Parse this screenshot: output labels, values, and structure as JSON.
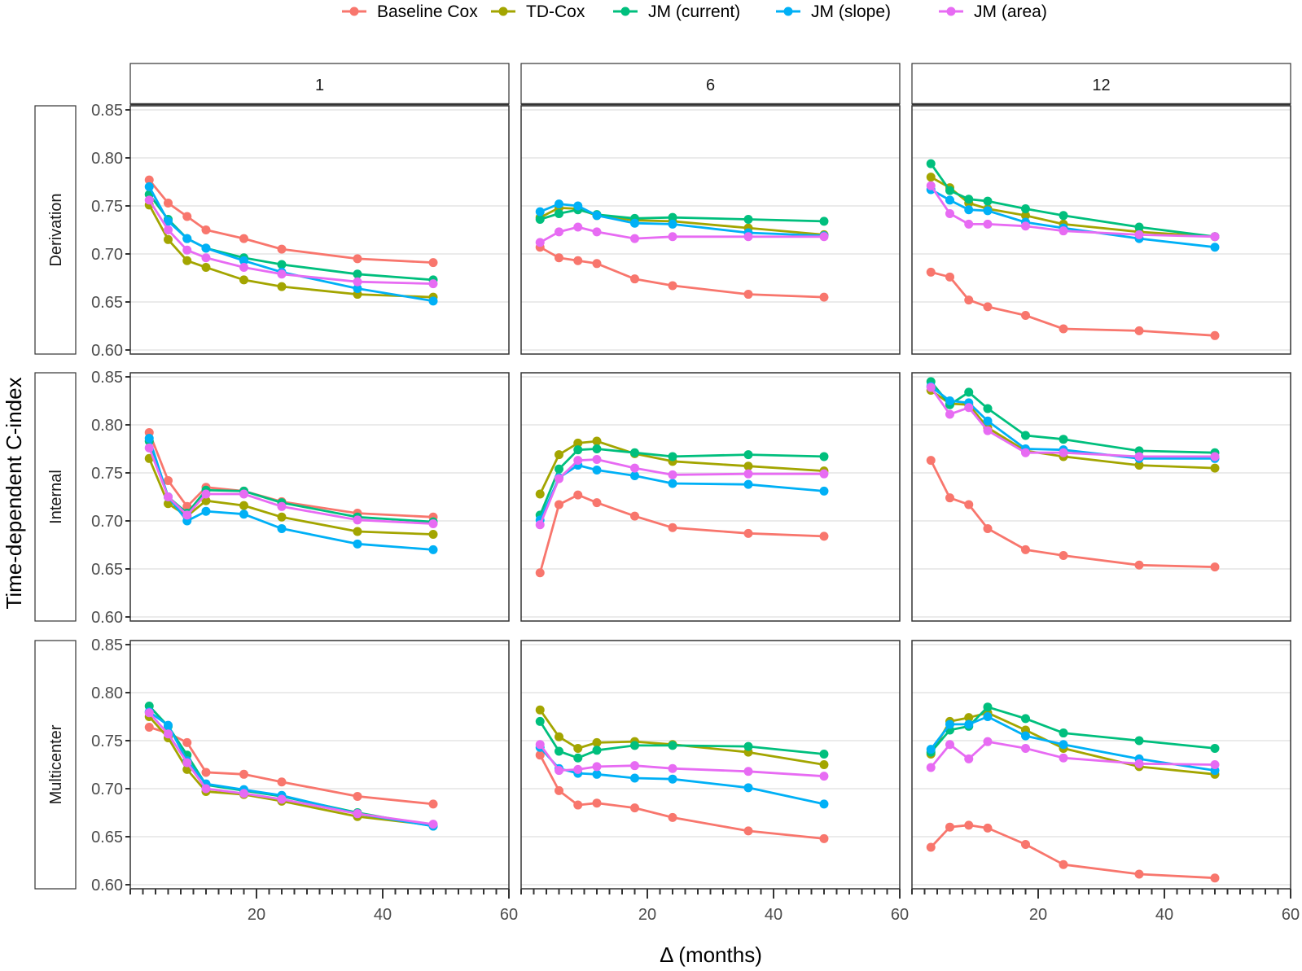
{
  "chart_data": {
    "type": "line",
    "title": "",
    "xlabel": "Δ (months)",
    "ylabel": "Time-dependent C-index",
    "xlim": [
      0,
      60
    ],
    "ylim": [
      0.6,
      0.85
    ],
    "x_ticks": [
      20,
      40,
      60
    ],
    "x_minor_tick_step": 2,
    "y_ticks": [
      0.6,
      0.65,
      0.7,
      0.75,
      0.8,
      0.85
    ],
    "y_tick_labels": [
      "0.60",
      "0.65",
      "0.70",
      "0.75",
      "0.80",
      "0.85"
    ],
    "grid": true,
    "legend_position": "top",
    "facet_cols": [
      "1",
      "6",
      "12"
    ],
    "facet_rows": [
      "Derivation",
      "Internal",
      "Multicenter"
    ],
    "x": [
      3,
      6,
      9,
      12,
      18,
      24,
      36,
      48
    ],
    "series": [
      {
        "name": "Baseline Cox",
        "color": "#F8766D"
      },
      {
        "name": "TD-Cox",
        "color": "#A3A500"
      },
      {
        "name": "JM (current)",
        "color": "#00BF7D"
      },
      {
        "name": "JM (slope)",
        "color": "#00B0F6"
      },
      {
        "name": "JM (area)",
        "color": "#E76BF3"
      }
    ],
    "panels": [
      {
        "row": "Derivation",
        "col": "1",
        "values": {
          "Baseline Cox": [
            0.777,
            0.753,
            0.739,
            0.725,
            0.716,
            0.705,
            0.695,
            0.691
          ],
          "TD-Cox": [
            0.751,
            0.715,
            0.693,
            0.686,
            0.673,
            0.666,
            0.658,
            0.655
          ],
          "JM (current)": [
            0.762,
            0.736,
            0.716,
            0.706,
            0.696,
            0.689,
            0.679,
            0.673
          ],
          "JM (slope)": [
            0.77,
            0.734,
            0.716,
            0.706,
            0.693,
            0.681,
            0.664,
            0.651
          ],
          "JM (area)": [
            0.756,
            0.725,
            0.704,
            0.696,
            0.686,
            0.679,
            0.671,
            0.669
          ]
        }
      },
      {
        "row": "Derivation",
        "col": "6",
        "values": {
          "Baseline Cox": [
            0.707,
            0.696,
            0.693,
            0.69,
            0.674,
            0.667,
            0.658,
            0.655
          ],
          "TD-Cox": [
            0.738,
            0.748,
            0.747,
            0.74,
            0.735,
            0.734,
            0.727,
            0.72
          ],
          "JM (current)": [
            0.736,
            0.742,
            0.746,
            0.741,
            0.737,
            0.738,
            0.736,
            0.734
          ],
          "JM (slope)": [
            0.744,
            0.752,
            0.75,
            0.74,
            0.732,
            0.731,
            0.722,
            0.719
          ],
          "JM (area)": [
            0.712,
            0.723,
            0.728,
            0.723,
            0.716,
            0.718,
            0.718,
            0.718
          ]
        }
      },
      {
        "row": "Derivation",
        "col": "12",
        "values": {
          "Baseline Cox": [
            0.681,
            0.676,
            0.652,
            0.645,
            0.636,
            0.622,
            0.62,
            0.615
          ],
          "TD-Cox": [
            0.78,
            0.769,
            0.753,
            0.747,
            0.74,
            0.731,
            0.723,
            0.718
          ],
          "JM (current)": [
            0.794,
            0.766,
            0.757,
            0.755,
            0.747,
            0.74,
            0.728,
            0.718
          ],
          "JM (slope)": [
            0.767,
            0.756,
            0.746,
            0.745,
            0.733,
            0.727,
            0.716,
            0.707
          ],
          "JM (area)": [
            0.771,
            0.742,
            0.731,
            0.731,
            0.729,
            0.724,
            0.72,
            0.718
          ]
        }
      },
      {
        "row": "Internal",
        "col": "1",
        "values": {
          "Baseline Cox": [
            0.792,
            0.742,
            0.715,
            0.735,
            0.731,
            0.72,
            0.708,
            0.704
          ],
          "TD-Cox": [
            0.765,
            0.718,
            0.705,
            0.721,
            0.716,
            0.704,
            0.689,
            0.686
          ],
          "JM (current)": [
            0.783,
            0.725,
            0.708,
            0.732,
            0.731,
            0.719,
            0.704,
            0.699
          ],
          "JM (slope)": [
            0.786,
            0.725,
            0.7,
            0.71,
            0.707,
            0.692,
            0.676,
            0.67
          ],
          "JM (area)": [
            0.776,
            0.725,
            0.706,
            0.728,
            0.728,
            0.715,
            0.701,
            0.697
          ]
        }
      },
      {
        "row": "Internal",
        "col": "6",
        "values": {
          "Baseline Cox": [
            0.646,
            0.717,
            0.727,
            0.719,
            0.705,
            0.693,
            0.687,
            0.684
          ],
          "TD-Cox": [
            0.728,
            0.769,
            0.781,
            0.783,
            0.77,
            0.762,
            0.757,
            0.752
          ],
          "JM (current)": [
            0.706,
            0.754,
            0.774,
            0.775,
            0.771,
            0.767,
            0.769,
            0.767
          ],
          "JM (slope)": [
            0.701,
            0.745,
            0.758,
            0.753,
            0.747,
            0.739,
            0.738,
            0.731
          ],
          "JM (area)": [
            0.696,
            0.744,
            0.763,
            0.764,
            0.755,
            0.748,
            0.749,
            0.749
          ]
        }
      },
      {
        "row": "Internal",
        "col": "12",
        "values": {
          "Baseline Cox": [
            0.763,
            0.724,
            0.717,
            0.692,
            0.67,
            0.664,
            0.654,
            0.652
          ],
          "TD-Cox": [
            0.836,
            0.822,
            0.821,
            0.797,
            0.773,
            0.767,
            0.758,
            0.755
          ],
          "JM (current)": [
            0.845,
            0.821,
            0.834,
            0.817,
            0.789,
            0.785,
            0.773,
            0.771
          ],
          "JM (slope)": [
            0.84,
            0.825,
            0.823,
            0.804,
            0.775,
            0.774,
            0.765,
            0.765
          ],
          "JM (area)": [
            0.839,
            0.811,
            0.818,
            0.794,
            0.771,
            0.771,
            0.767,
            0.767
          ]
        }
      },
      {
        "row": "Multicenter",
        "col": "1",
        "values": {
          "Baseline Cox": [
            0.764,
            0.758,
            0.748,
            0.717,
            0.715,
            0.707,
            0.692,
            0.684
          ],
          "TD-Cox": [
            0.775,
            0.753,
            0.72,
            0.697,
            0.694,
            0.687,
            0.671,
            0.662
          ],
          "JM (current)": [
            0.786,
            0.765,
            0.735,
            0.704,
            0.698,
            0.692,
            0.675,
            0.661
          ],
          "JM (slope)": [
            0.78,
            0.766,
            0.729,
            0.705,
            0.699,
            0.693,
            0.674,
            0.661
          ],
          "JM (area)": [
            0.779,
            0.757,
            0.727,
            0.7,
            0.695,
            0.689,
            0.674,
            0.663
          ]
        }
      },
      {
        "row": "Multicenter",
        "col": "6",
        "values": {
          "Baseline Cox": [
            0.735,
            0.698,
            0.683,
            0.685,
            0.68,
            0.67,
            0.656,
            0.648
          ],
          "TD-Cox": [
            0.782,
            0.754,
            0.742,
            0.748,
            0.749,
            0.746,
            0.738,
            0.725
          ],
          "JM (current)": [
            0.77,
            0.739,
            0.732,
            0.74,
            0.745,
            0.745,
            0.744,
            0.736
          ],
          "JM (slope)": [
            0.743,
            0.721,
            0.716,
            0.715,
            0.711,
            0.71,
            0.701,
            0.684
          ],
          "JM (area)": [
            0.746,
            0.719,
            0.72,
            0.723,
            0.724,
            0.721,
            0.718,
            0.713
          ]
        }
      },
      {
        "row": "Multicenter",
        "col": "12",
        "values": {
          "Baseline Cox": [
            0.639,
            0.66,
            0.662,
            0.659,
            0.642,
            0.621,
            0.611,
            0.607
          ],
          "TD-Cox": [
            0.736,
            0.77,
            0.774,
            0.779,
            0.761,
            0.742,
            0.723,
            0.715
          ],
          "JM (current)": [
            0.738,
            0.761,
            0.765,
            0.785,
            0.773,
            0.758,
            0.75,
            0.742
          ],
          "JM (slope)": [
            0.741,
            0.767,
            0.767,
            0.775,
            0.755,
            0.746,
            0.731,
            0.719
          ],
          "JM (area)": [
            0.722,
            0.746,
            0.731,
            0.749,
            0.742,
            0.732,
            0.726,
            0.725
          ]
        }
      }
    ]
  }
}
